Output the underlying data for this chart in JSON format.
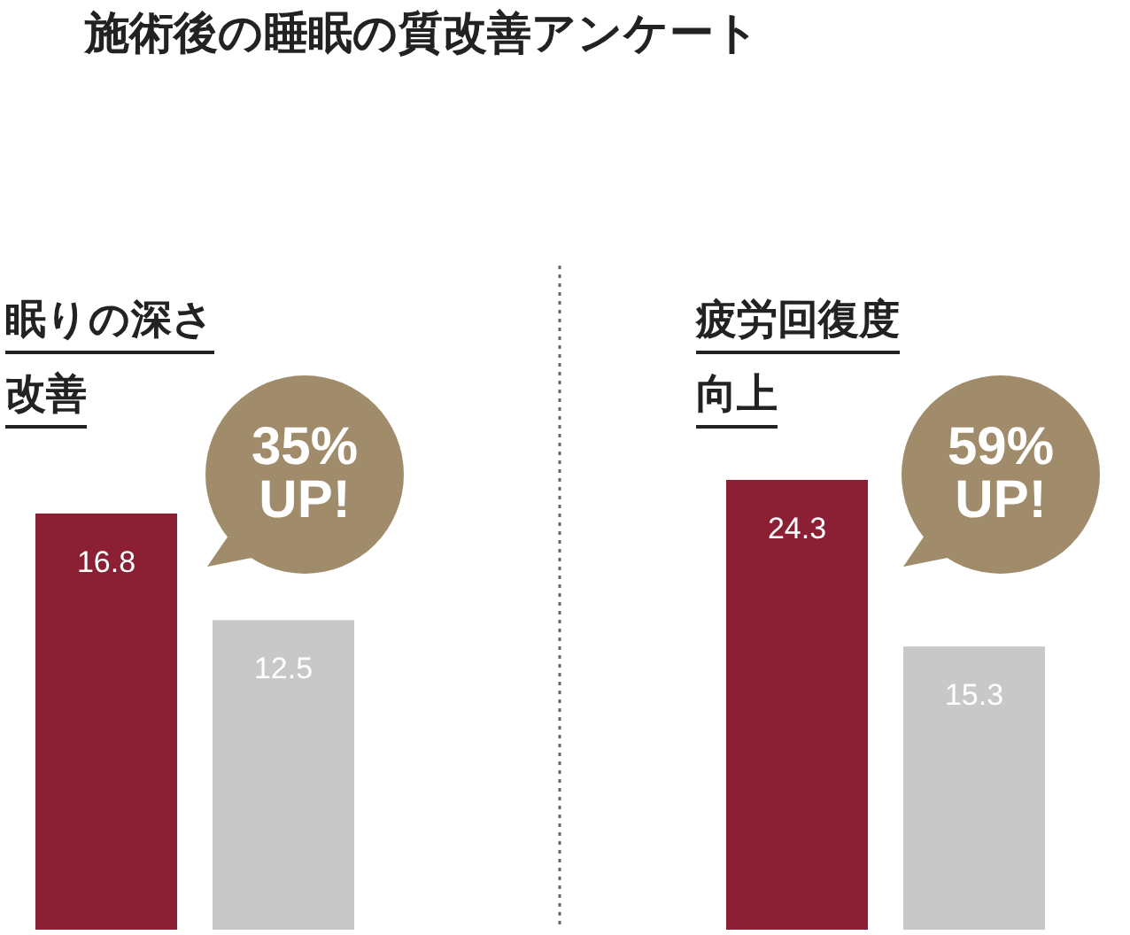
{
  "chart_data": [
    {
      "type": "other",
      "title": "施術後の睡眠の質改善アンケート"
    },
    {
      "type": "bar",
      "title": "眠りの深さ改善",
      "categories": [
        null,
        null
      ],
      "values": [
        16.8,
        12.5
      ],
      "colors": [
        "#8b2035",
        "#c8c8c8"
      ],
      "data_labels": true,
      "annotations": [
        "35% UP!"
      ]
    },
    {
      "type": "bar",
      "title": "疲労回復度向上",
      "categories": [
        null,
        null
      ],
      "values": [
        24.3,
        15.3
      ],
      "colors": [
        "#8b2035",
        "#c8c8c8"
      ],
      "data_labels": true,
      "annotations": [
        "59% UP!"
      ]
    }
  ]
}
